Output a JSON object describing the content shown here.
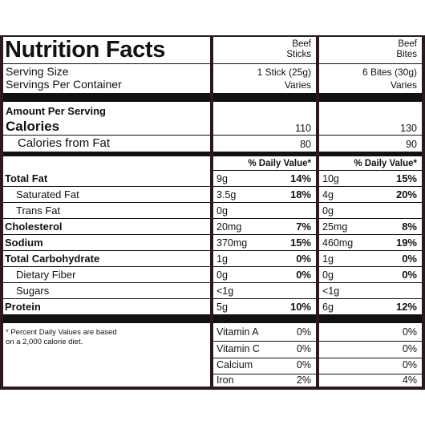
{
  "label": {
    "title": "Nutrition Facts",
    "serving_size": "Serving Size",
    "servings_per_container": "Servings Per Container",
    "amount_per_serving": "Amount Per Serving",
    "calories": "Calories",
    "calories_from_fat": "Calories from Fat",
    "footnote_line1": "* Percent Daily Values are based",
    "footnote_line2": "on a 2,000 calorie diet."
  },
  "columns": [
    {
      "name_line1": "Beef",
      "name_line2": "Sticks",
      "serving_size": "1 Stick (25g)",
      "servings": "Varies",
      "calories": "110",
      "calories_from_fat": "80",
      "dv_header": "% Daily Value*",
      "nutrients": {
        "total_fat": {
          "amount": "9g",
          "dv": "14%"
        },
        "saturated_fat": {
          "amount": "3.5g",
          "dv": "18%"
        },
        "trans_fat": {
          "amount": "0g",
          "dv": ""
        },
        "cholesterol": {
          "amount": "20mg",
          "dv": "7%"
        },
        "sodium": {
          "amount": "370mg",
          "dv": "15%"
        },
        "total_carbohydrate": {
          "amount": "1g",
          "dv": "0%"
        },
        "dietary_fiber": {
          "amount": "0g",
          "dv": "0%"
        },
        "sugars": {
          "amount": "<1g",
          "dv": ""
        },
        "protein": {
          "amount": "5g",
          "dv": "10%"
        }
      },
      "vitamins": {
        "vitamin_a": "0%",
        "vitamin_c": "0%",
        "calcium": "0%",
        "iron": "2%"
      }
    },
    {
      "name_line1": "Beef",
      "name_line2": "Bites",
      "serving_size": "6 Bites (30g)",
      "servings": "Varies",
      "calories": "130",
      "calories_from_fat": "90",
      "dv_header": "% Daily Value*",
      "nutrients": {
        "total_fat": {
          "amount": "10g",
          "dv": "15%"
        },
        "saturated_fat": {
          "amount": "4g",
          "dv": "20%"
        },
        "trans_fat": {
          "amount": "0g",
          "dv": ""
        },
        "cholesterol": {
          "amount": "25mg",
          "dv": "8%"
        },
        "sodium": {
          "amount": "460mg",
          "dv": "19%"
        },
        "total_carbohydrate": {
          "amount": "1g",
          "dv": "0%"
        },
        "dietary_fiber": {
          "amount": "0g",
          "dv": "0%"
        },
        "sugars": {
          "amount": "<1g",
          "dv": ""
        },
        "protein": {
          "amount": "6g",
          "dv": "12%"
        }
      },
      "vitamins": {
        "vitamin_a": "0%",
        "vitamin_c": "0%",
        "calcium": "0%",
        "iron": "4%"
      }
    }
  ],
  "nutrient_labels": {
    "total_fat": "Total Fat",
    "saturated_fat": "Saturated Fat",
    "trans_fat": "Trans Fat",
    "cholesterol": "Cholesterol",
    "sodium": "Sodium",
    "total_carbohydrate": "Total Carbohydrate",
    "dietary_fiber": "Dietary Fiber",
    "sugars": "Sugars",
    "protein": "Protein"
  },
  "vitamin_labels": {
    "vitamin_a": "Vitamin A",
    "vitamin_c": "Vitamin C",
    "calcium": "Calcium",
    "iron": "Iron"
  }
}
